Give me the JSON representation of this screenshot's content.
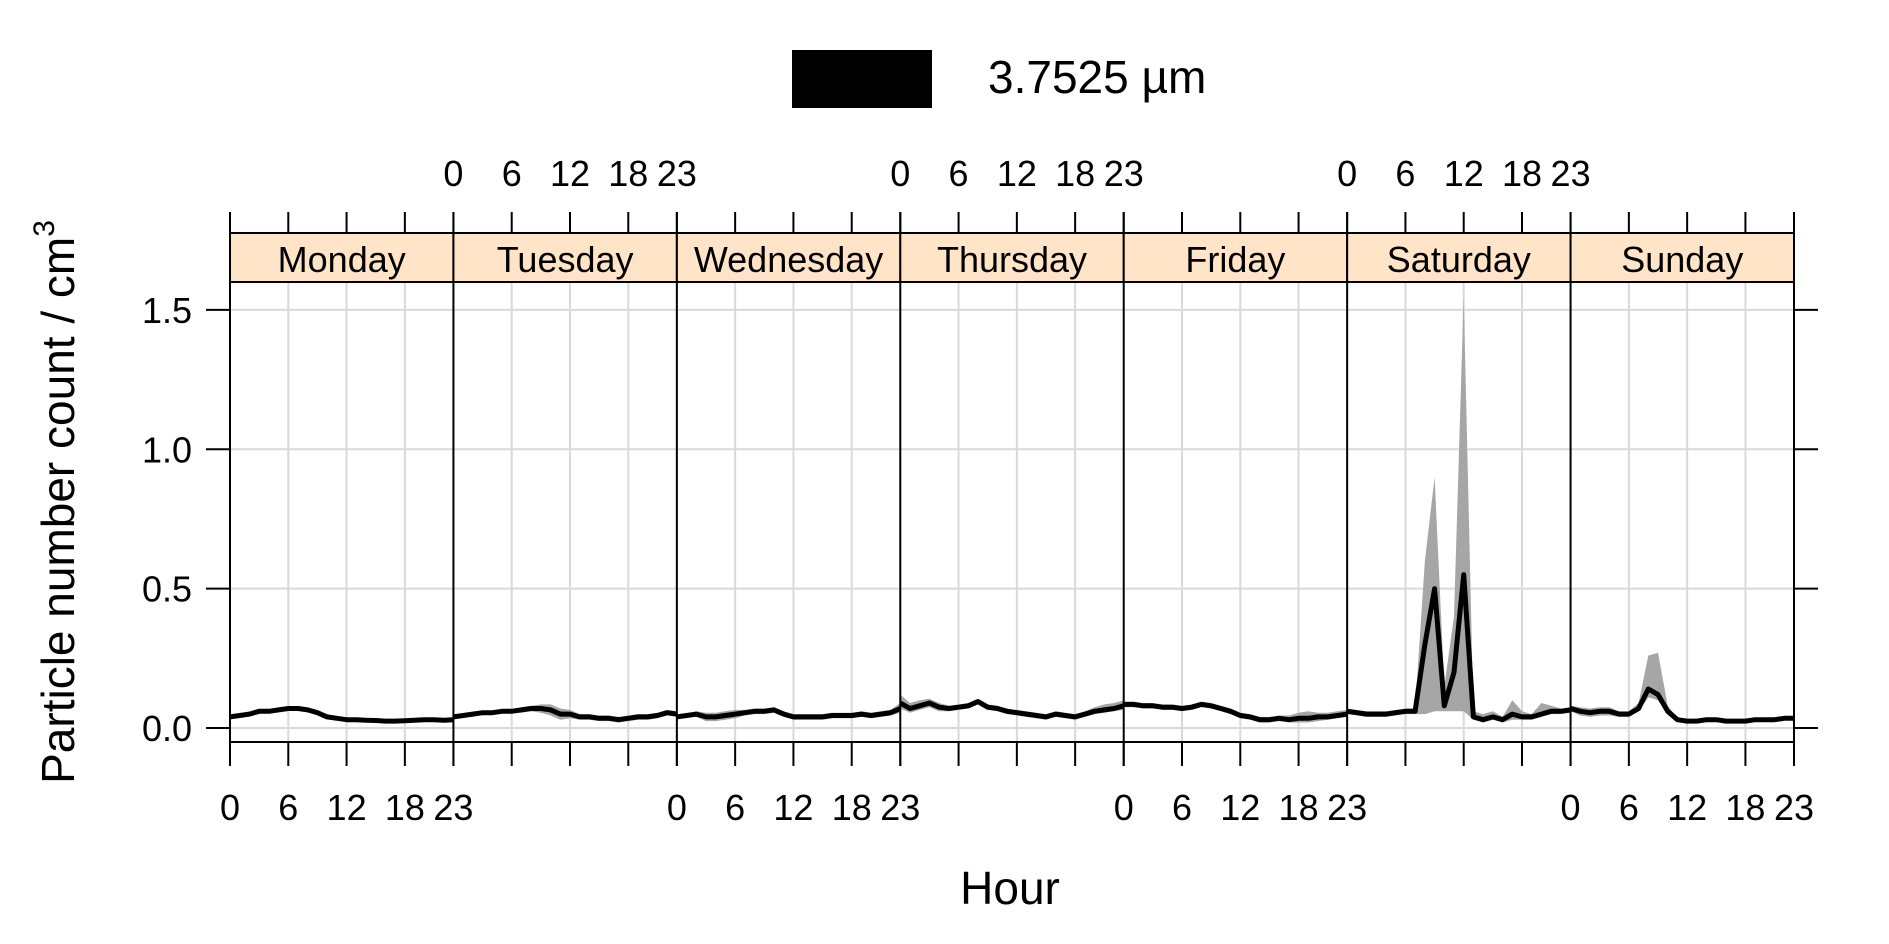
{
  "chart_data": {
    "type": "line",
    "xlabel": "Hour",
    "ylabel": "Particle number count / cm",
    "ylabel_superscript": "3",
    "legend": {
      "label": "3.7525 µm",
      "color": "#000000",
      "position": "top"
    },
    "colors": {
      "strip_fill": "#ffe4c7",
      "band_fill": "#a6a6a6",
      "line": "#000000",
      "grid": "#d9d9d9"
    },
    "x_ticks": [
      0,
      6,
      12,
      18,
      23
    ],
    "x_tick_labels": [
      "0",
      "6",
      "12",
      "18",
      "23"
    ],
    "ylim": [
      -0.05,
      1.6
    ],
    "y_ticks": [
      0.0,
      0.5,
      1.0,
      1.5
    ],
    "y_tick_labels": [
      "0.0",
      "0.5",
      "1.0",
      "1.5"
    ],
    "grid": true,
    "panels": [
      {
        "day": "Monday",
        "mean": [
          0.04,
          0.045,
          0.05,
          0.06,
          0.06,
          0.065,
          0.07,
          0.07,
          0.065,
          0.055,
          0.04,
          0.035,
          0.03,
          0.03,
          0.028,
          0.027,
          0.025,
          0.025,
          0.026,
          0.028,
          0.03,
          0.03,
          0.028,
          0.03
        ],
        "lower": [
          0.035,
          0.04,
          0.045,
          0.055,
          0.055,
          0.06,
          0.065,
          0.065,
          0.06,
          0.05,
          0.035,
          0.03,
          0.025,
          0.025,
          0.023,
          0.022,
          0.02,
          0.02,
          0.021,
          0.023,
          0.025,
          0.025,
          0.023,
          0.025
        ],
        "upper": [
          0.045,
          0.05,
          0.055,
          0.065,
          0.065,
          0.07,
          0.075,
          0.075,
          0.07,
          0.06,
          0.045,
          0.04,
          0.035,
          0.035,
          0.033,
          0.032,
          0.03,
          0.03,
          0.031,
          0.033,
          0.035,
          0.035,
          0.033,
          0.035
        ]
      },
      {
        "day": "Tuesday",
        "mean": [
          0.04,
          0.045,
          0.05,
          0.055,
          0.055,
          0.06,
          0.06,
          0.065,
          0.07,
          0.07,
          0.065,
          0.05,
          0.05,
          0.04,
          0.04,
          0.035,
          0.035,
          0.03,
          0.035,
          0.04,
          0.04,
          0.045,
          0.055,
          0.05
        ],
        "lower": [
          0.035,
          0.04,
          0.045,
          0.05,
          0.05,
          0.055,
          0.055,
          0.055,
          0.06,
          0.055,
          0.045,
          0.03,
          0.035,
          0.03,
          0.03,
          0.025,
          0.025,
          0.02,
          0.025,
          0.03,
          0.03,
          0.035,
          0.045,
          0.04
        ],
        "upper": [
          0.045,
          0.05,
          0.055,
          0.06,
          0.06,
          0.065,
          0.065,
          0.075,
          0.08,
          0.085,
          0.085,
          0.07,
          0.065,
          0.05,
          0.05,
          0.045,
          0.045,
          0.04,
          0.045,
          0.05,
          0.05,
          0.055,
          0.065,
          0.06
        ]
      },
      {
        "day": "Wednesday",
        "mean": [
          0.04,
          0.045,
          0.05,
          0.04,
          0.04,
          0.045,
          0.05,
          0.055,
          0.06,
          0.06,
          0.065,
          0.05,
          0.04,
          0.04,
          0.04,
          0.04,
          0.045,
          0.045,
          0.045,
          0.05,
          0.045,
          0.05,
          0.055,
          0.07
        ],
        "lower": [
          0.035,
          0.04,
          0.04,
          0.025,
          0.025,
          0.03,
          0.035,
          0.045,
          0.05,
          0.05,
          0.055,
          0.04,
          0.03,
          0.03,
          0.03,
          0.03,
          0.035,
          0.035,
          0.035,
          0.04,
          0.035,
          0.04,
          0.045,
          0.055
        ],
        "upper": [
          0.045,
          0.05,
          0.06,
          0.055,
          0.055,
          0.06,
          0.065,
          0.065,
          0.07,
          0.07,
          0.075,
          0.06,
          0.05,
          0.05,
          0.05,
          0.05,
          0.055,
          0.055,
          0.055,
          0.06,
          0.055,
          0.06,
          0.065,
          0.09
        ]
      },
      {
        "day": "Thursday",
        "mean": [
          0.09,
          0.07,
          0.08,
          0.09,
          0.075,
          0.07,
          0.075,
          0.08,
          0.095,
          0.075,
          0.07,
          0.06,
          0.055,
          0.05,
          0.045,
          0.04,
          0.05,
          0.045,
          0.04,
          0.05,
          0.06,
          0.065,
          0.07,
          0.08
        ],
        "lower": [
          0.07,
          0.055,
          0.065,
          0.075,
          0.06,
          0.06,
          0.065,
          0.07,
          0.085,
          0.065,
          0.06,
          0.05,
          0.045,
          0.04,
          0.035,
          0.03,
          0.04,
          0.035,
          0.03,
          0.04,
          0.05,
          0.055,
          0.06,
          0.065
        ],
        "upper": [
          0.12,
          0.09,
          0.1,
          0.105,
          0.09,
          0.08,
          0.085,
          0.09,
          0.105,
          0.085,
          0.08,
          0.07,
          0.065,
          0.06,
          0.055,
          0.05,
          0.06,
          0.055,
          0.05,
          0.06,
          0.075,
          0.085,
          0.09,
          0.1
        ]
      },
      {
        "day": "Friday",
        "mean": [
          0.085,
          0.085,
          0.08,
          0.08,
          0.075,
          0.075,
          0.07,
          0.075,
          0.085,
          0.08,
          0.07,
          0.06,
          0.045,
          0.04,
          0.03,
          0.03,
          0.035,
          0.03,
          0.035,
          0.035,
          0.04,
          0.04,
          0.045,
          0.05
        ],
        "lower": [
          0.075,
          0.075,
          0.07,
          0.07,
          0.065,
          0.065,
          0.06,
          0.065,
          0.075,
          0.07,
          0.06,
          0.05,
          0.035,
          0.03,
          0.02,
          0.02,
          0.025,
          0.02,
          0.02,
          0.02,
          0.025,
          0.03,
          0.035,
          0.04
        ],
        "upper": [
          0.095,
          0.095,
          0.09,
          0.09,
          0.085,
          0.085,
          0.08,
          0.085,
          0.095,
          0.09,
          0.08,
          0.07,
          0.055,
          0.05,
          0.04,
          0.04,
          0.045,
          0.045,
          0.055,
          0.06,
          0.055,
          0.055,
          0.06,
          0.065
        ]
      },
      {
        "day": "Saturday",
        "mean": [
          0.06,
          0.055,
          0.05,
          0.05,
          0.05,
          0.055,
          0.06,
          0.06,
          0.3,
          0.5,
          0.08,
          0.2,
          0.55,
          0.04,
          0.03,
          0.04,
          0.03,
          0.05,
          0.04,
          0.04,
          0.05,
          0.06,
          0.06,
          0.065
        ],
        "lower": [
          0.05,
          0.045,
          0.04,
          0.04,
          0.04,
          0.045,
          0.05,
          0.05,
          0.05,
          0.06,
          0.06,
          0.06,
          0.06,
          0.03,
          0.02,
          0.03,
          0.02,
          0.03,
          0.03,
          0.03,
          0.04,
          0.05,
          0.05,
          0.055
        ],
        "upper": [
          0.07,
          0.065,
          0.06,
          0.06,
          0.06,
          0.065,
          0.07,
          0.07,
          0.6,
          0.9,
          0.15,
          0.4,
          1.55,
          0.06,
          0.05,
          0.06,
          0.04,
          0.1,
          0.06,
          0.05,
          0.09,
          0.08,
          0.07,
          0.075
        ]
      },
      {
        "day": "Sunday",
        "mean": [
          0.07,
          0.06,
          0.055,
          0.06,
          0.06,
          0.05,
          0.05,
          0.07,
          0.14,
          0.12,
          0.06,
          0.03,
          0.025,
          0.025,
          0.03,
          0.03,
          0.025,
          0.025,
          0.025,
          0.03,
          0.03,
          0.03,
          0.035,
          0.035
        ],
        "lower": [
          0.06,
          0.045,
          0.04,
          0.045,
          0.045,
          0.04,
          0.04,
          0.06,
          0.11,
          0.1,
          0.05,
          0.025,
          0.02,
          0.02,
          0.025,
          0.025,
          0.02,
          0.02,
          0.02,
          0.025,
          0.025,
          0.025,
          0.03,
          0.03
        ],
        "upper": [
          0.08,
          0.075,
          0.07,
          0.075,
          0.075,
          0.06,
          0.06,
          0.09,
          0.26,
          0.27,
          0.08,
          0.035,
          0.03,
          0.03,
          0.035,
          0.035,
          0.03,
          0.03,
          0.03,
          0.035,
          0.035,
          0.035,
          0.04,
          0.04
        ]
      }
    ]
  }
}
